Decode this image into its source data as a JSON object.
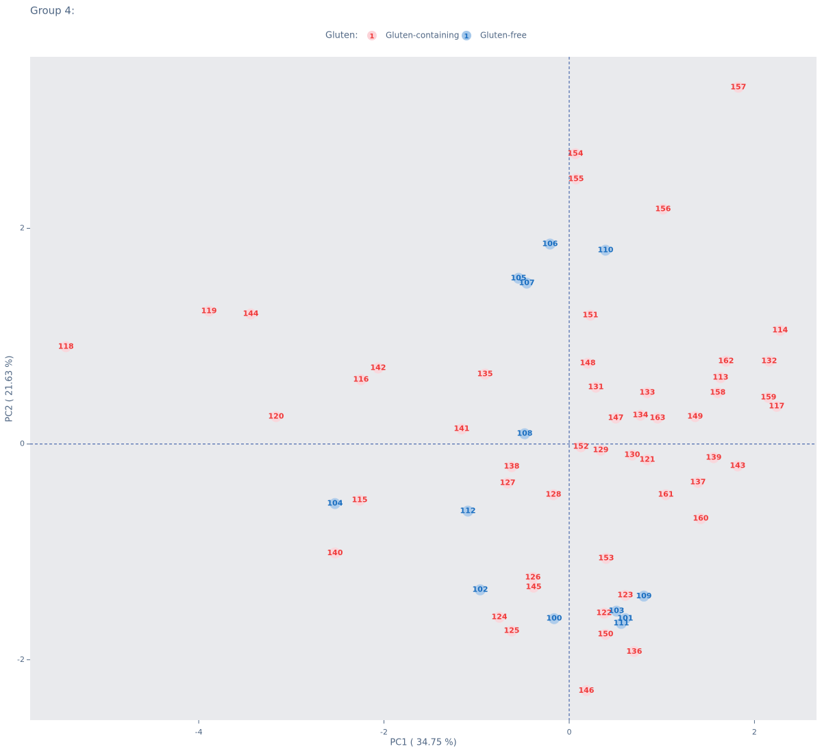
{
  "chart_data": {
    "type": "scatter",
    "title": "Group 4:",
    "x_label": "PC1 ( 34.75 %)",
    "y_label": "PC2 ( 21.63 %)",
    "legend_title": "Gluten:",
    "legend_marker_text": "1",
    "xlim": [
      -5.82,
      2.67
    ],
    "ylim": [
      -2.56,
      3.59
    ],
    "xticks": [
      -4,
      -2,
      0,
      2
    ],
    "yticks": [
      -2,
      0,
      2
    ],
    "zero_lines": true,
    "series": [
      {
        "name": "Gluten-containing",
        "color": "#f03a3a",
        "marker_color": "#fcd3d8",
        "labels": [
          "157",
          "154",
          "155",
          "156",
          "119",
          "144",
          "151",
          "114",
          "118",
          "132",
          "162",
          "142",
          "148",
          "135",
          "113",
          "116",
          "131",
          "133",
          "158",
          "159",
          "117",
          "120",
          "147",
          "134",
          "163",
          "149",
          "141",
          "152",
          "129",
          "130",
          "121",
          "139",
          "143",
          "138",
          "127",
          "137",
          "128",
          "161",
          "115",
          "160",
          "140",
          "153",
          "126",
          "145",
          "123",
          "122",
          "124",
          "125",
          "150",
          "136",
          "146"
        ],
        "x": [
          1.826,
          0.067,
          0.074,
          1.013,
          -3.889,
          -3.438,
          0.229,
          2.277,
          -5.434,
          2.159,
          1.693,
          -2.063,
          0.2,
          -0.909,
          1.634,
          -2.248,
          0.288,
          0.843,
          1.604,
          2.152,
          2.24,
          -3.165,
          0.503,
          0.769,
          0.954,
          1.36,
          -1.161,
          0.126,
          0.34,
          0.68,
          0.843,
          1.56,
          1.819,
          -0.621,
          -0.665,
          1.39,
          -0.17,
          1.043,
          -2.262,
          1.42,
          -2.529,
          0.399,
          -0.392,
          -0.384,
          0.606,
          0.377,
          -0.754,
          -0.621,
          0.392,
          0.702,
          0.185
        ],
        "values": [
          3.308,
          2.692,
          2.457,
          2.178,
          1.232,
          1.206,
          1.194,
          1.054,
          0.902,
          0.768,
          0.768,
          0.705,
          0.749,
          0.648,
          0.616,
          0.597,
          0.527,
          0.476,
          0.476,
          0.432,
          0.349,
          0.254,
          0.241,
          0.267,
          0.241,
          0.254,
          0.14,
          -0.025,
          -0.057,
          -0.102,
          -0.146,
          -0.127,
          -0.203,
          -0.21,
          -0.362,
          -0.356,
          -0.47,
          -0.47,
          -0.521,
          -0.692,
          -1.01,
          -1.06,
          -1.238,
          -1.327,
          -1.403,
          -1.568,
          -1.606,
          -1.733,
          -1.765,
          -1.924,
          -2.286
        ]
      },
      {
        "name": "Gluten-free",
        "color": "#1a6ec0",
        "marker_color": "#a3c7ea",
        "labels": [
          "106",
          "110",
          "105",
          "107",
          "108",
          "104",
          "112",
          "102",
          "100",
          "109",
          "103",
          "101",
          "111"
        ],
        "x": [
          -0.207,
          0.392,
          -0.547,
          -0.458,
          -0.481,
          -2.529,
          -1.094,
          -0.961,
          -0.163,
          0.806,
          0.51,
          0.606,
          0.562
        ],
        "values": [
          1.854,
          1.797,
          1.537,
          1.492,
          0.095,
          -0.552,
          -0.622,
          -1.352,
          -1.619,
          -1.41,
          -1.549,
          -1.619,
          -1.663
        ]
      }
    ]
  }
}
